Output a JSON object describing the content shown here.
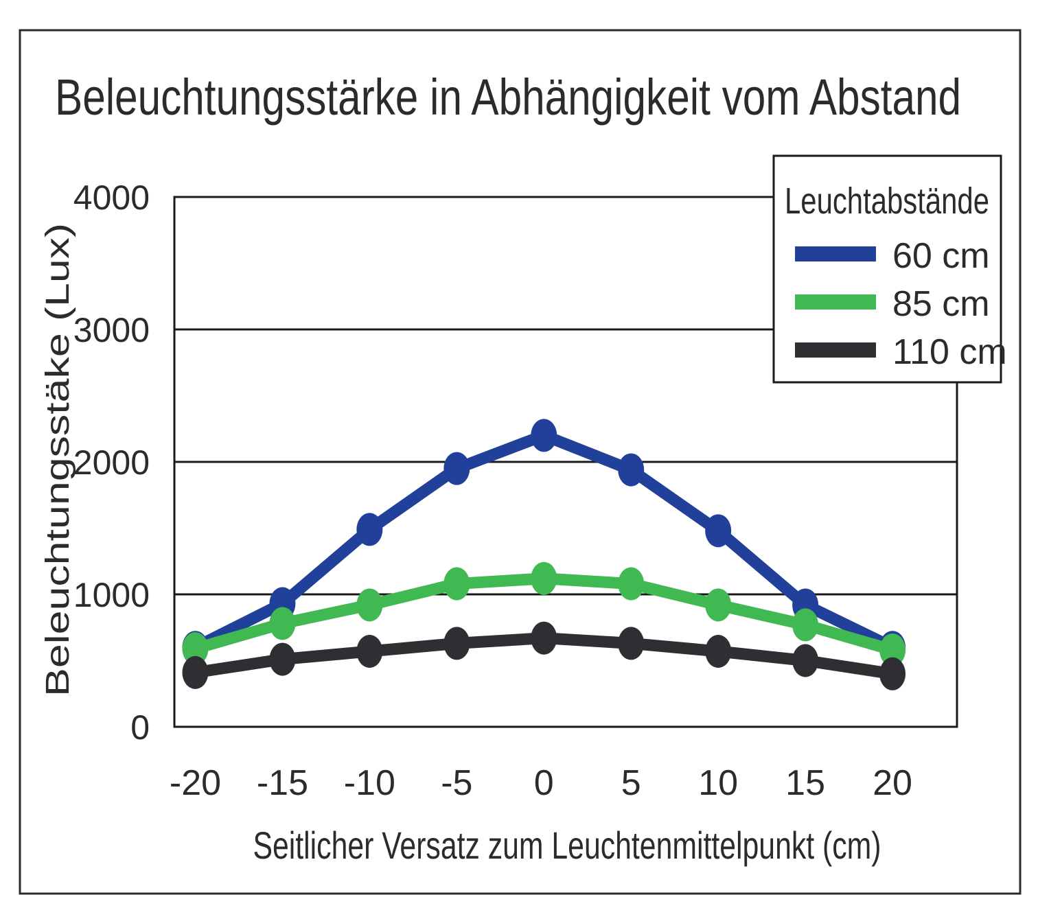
{
  "chart_data": {
    "type": "line",
    "title": "Beleuchtungsstärke in Abhängigkeit vom Abstand",
    "xlabel": "Seitlicher Versatz zum Leuchtenmittelpunkt (cm)",
    "ylabel": "Beleuchtungsstäke (Lux)",
    "x": [
      -20,
      -15,
      -10,
      -5,
      0,
      5,
      10,
      15,
      20
    ],
    "x_tick_labels": [
      "-20",
      "-15",
      "-10",
      "-5",
      "0",
      "5",
      "10",
      "15",
      "20"
    ],
    "y_ticks": [
      0,
      1000,
      2000,
      3000,
      4000
    ],
    "y_tick_labels": [
      "0",
      "1000",
      "2000",
      "3000",
      "4000"
    ],
    "xlim": [
      -21.2,
      23.7
    ],
    "ylim": [
      0,
      4000
    ],
    "grid": "horizontal",
    "legend": {
      "title": "Leuchtabstände",
      "position": "top-right"
    },
    "series": [
      {
        "name": "60 cm",
        "color": "#21409a",
        "values": [
          600,
          930,
          1490,
          1950,
          2200,
          1940,
          1480,
          920,
          600
        ]
      },
      {
        "name": "85 cm",
        "color": "#41b953",
        "values": [
          590,
          780,
          920,
          1080,
          1120,
          1080,
          920,
          770,
          580
        ]
      },
      {
        "name": "110 cm",
        "color": "#2e2e33",
        "values": [
          410,
          510,
          570,
          630,
          670,
          630,
          570,
          500,
          400
        ]
      }
    ]
  }
}
